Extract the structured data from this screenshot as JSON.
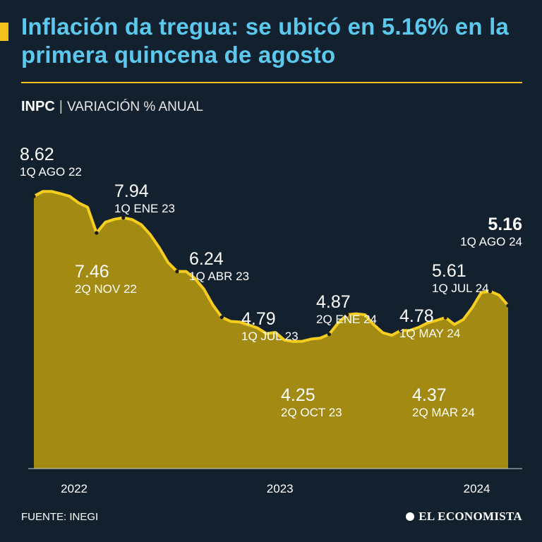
{
  "header": {
    "title": "Inflación da tregua: se ubicó en 5.16% en la primera quincena de agosto",
    "subtitle_strong": "INPC",
    "subtitle_separator": "|",
    "subtitle_light": "VARIACIÓN % ANUAL"
  },
  "colors": {
    "background": "#13202e",
    "title": "#5bc8ee",
    "accent": "#f2c21b",
    "area_fill": "#a38a12",
    "line": "#f5cd1f"
  },
  "chart_data": {
    "type": "area",
    "title": "INPC | VARIACIÓN % ANUAL",
    "xlabel": "",
    "ylabel": "",
    "ylim": [
      0,
      8.8
    ],
    "x_ticks": [
      "2022",
      "2023",
      "2024"
    ],
    "values": [
      8.62,
      8.77,
      8.77,
      8.7,
      8.62,
      8.41,
      8.27,
      7.46,
      7.8,
      7.89,
      7.94,
      7.88,
      7.72,
      7.41,
      7.0,
      6.52,
      6.24,
      6.24,
      6.02,
      5.68,
      5.18,
      4.79,
      4.66,
      4.64,
      4.55,
      4.45,
      4.27,
      4.31,
      4.07,
      4.02,
      4.03,
      4.1,
      4.13,
      4.25,
      4.61,
      4.87,
      4.9,
      4.87,
      4.55,
      4.3,
      4.22,
      4.37,
      4.37,
      4.47,
      4.61,
      4.69,
      4.78,
      4.56,
      4.72,
      5.1,
      5.57,
      5.61,
      5.49,
      5.16
    ],
    "annotations": [
      {
        "index": 0,
        "value": "8.62",
        "label": "1Q AGO 22"
      },
      {
        "index": 7,
        "value": "7.46",
        "label": "2Q NOV 22"
      },
      {
        "index": 10,
        "value": "7.94",
        "label": "1Q ENE 23"
      },
      {
        "index": 16,
        "value": "6.24",
        "label": "1Q ABR 23"
      },
      {
        "index": 21,
        "value": "4.79",
        "label": "1Q JUL 23"
      },
      {
        "index": 33,
        "value": "4.25",
        "label": "2Q OCT 23"
      },
      {
        "index": 35,
        "value": "4.87",
        "label": "2Q ENE 24"
      },
      {
        "index": 41,
        "value": "4.37",
        "label": "2Q MAR 24"
      },
      {
        "index": 46,
        "value": "4.78",
        "label": "1Q MAY 24"
      },
      {
        "index": 51,
        "value": "5.61",
        "label": "1Q JUL 24"
      },
      {
        "index": 53,
        "value": "5.16",
        "label": "1Q AGO 24"
      }
    ]
  },
  "footer": {
    "source": "FUENTE: INEGI",
    "brand": "EL ECONOMISTA"
  }
}
